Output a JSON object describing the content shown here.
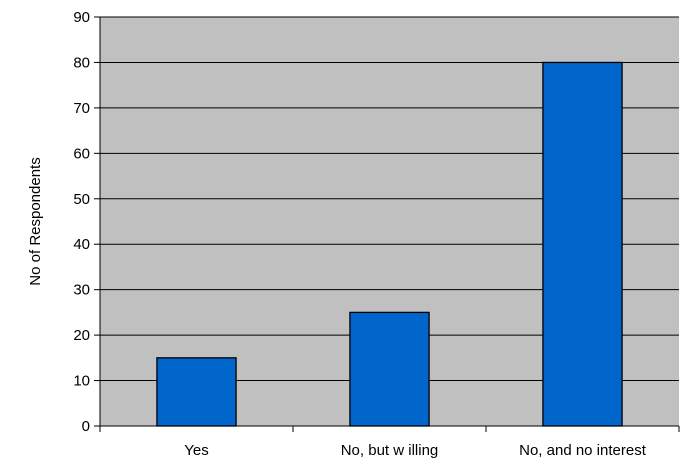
{
  "chart_data": {
    "type": "bar",
    "title": "",
    "xlabel": "",
    "ylabel": "No of Respondents",
    "categories": [
      "Yes",
      "No, but w illing",
      "No, and no interest"
    ],
    "values": [
      15,
      25,
      80
    ],
    "ylim": [
      0,
      90
    ],
    "ytick_step": 10,
    "grid": true,
    "legend": "none",
    "colors": {
      "plot_background": "#c0c0c0",
      "bar_fill": "#0066cc",
      "bar_stroke": "#000000",
      "gridline": "#000000",
      "axis": "#000000"
    }
  }
}
